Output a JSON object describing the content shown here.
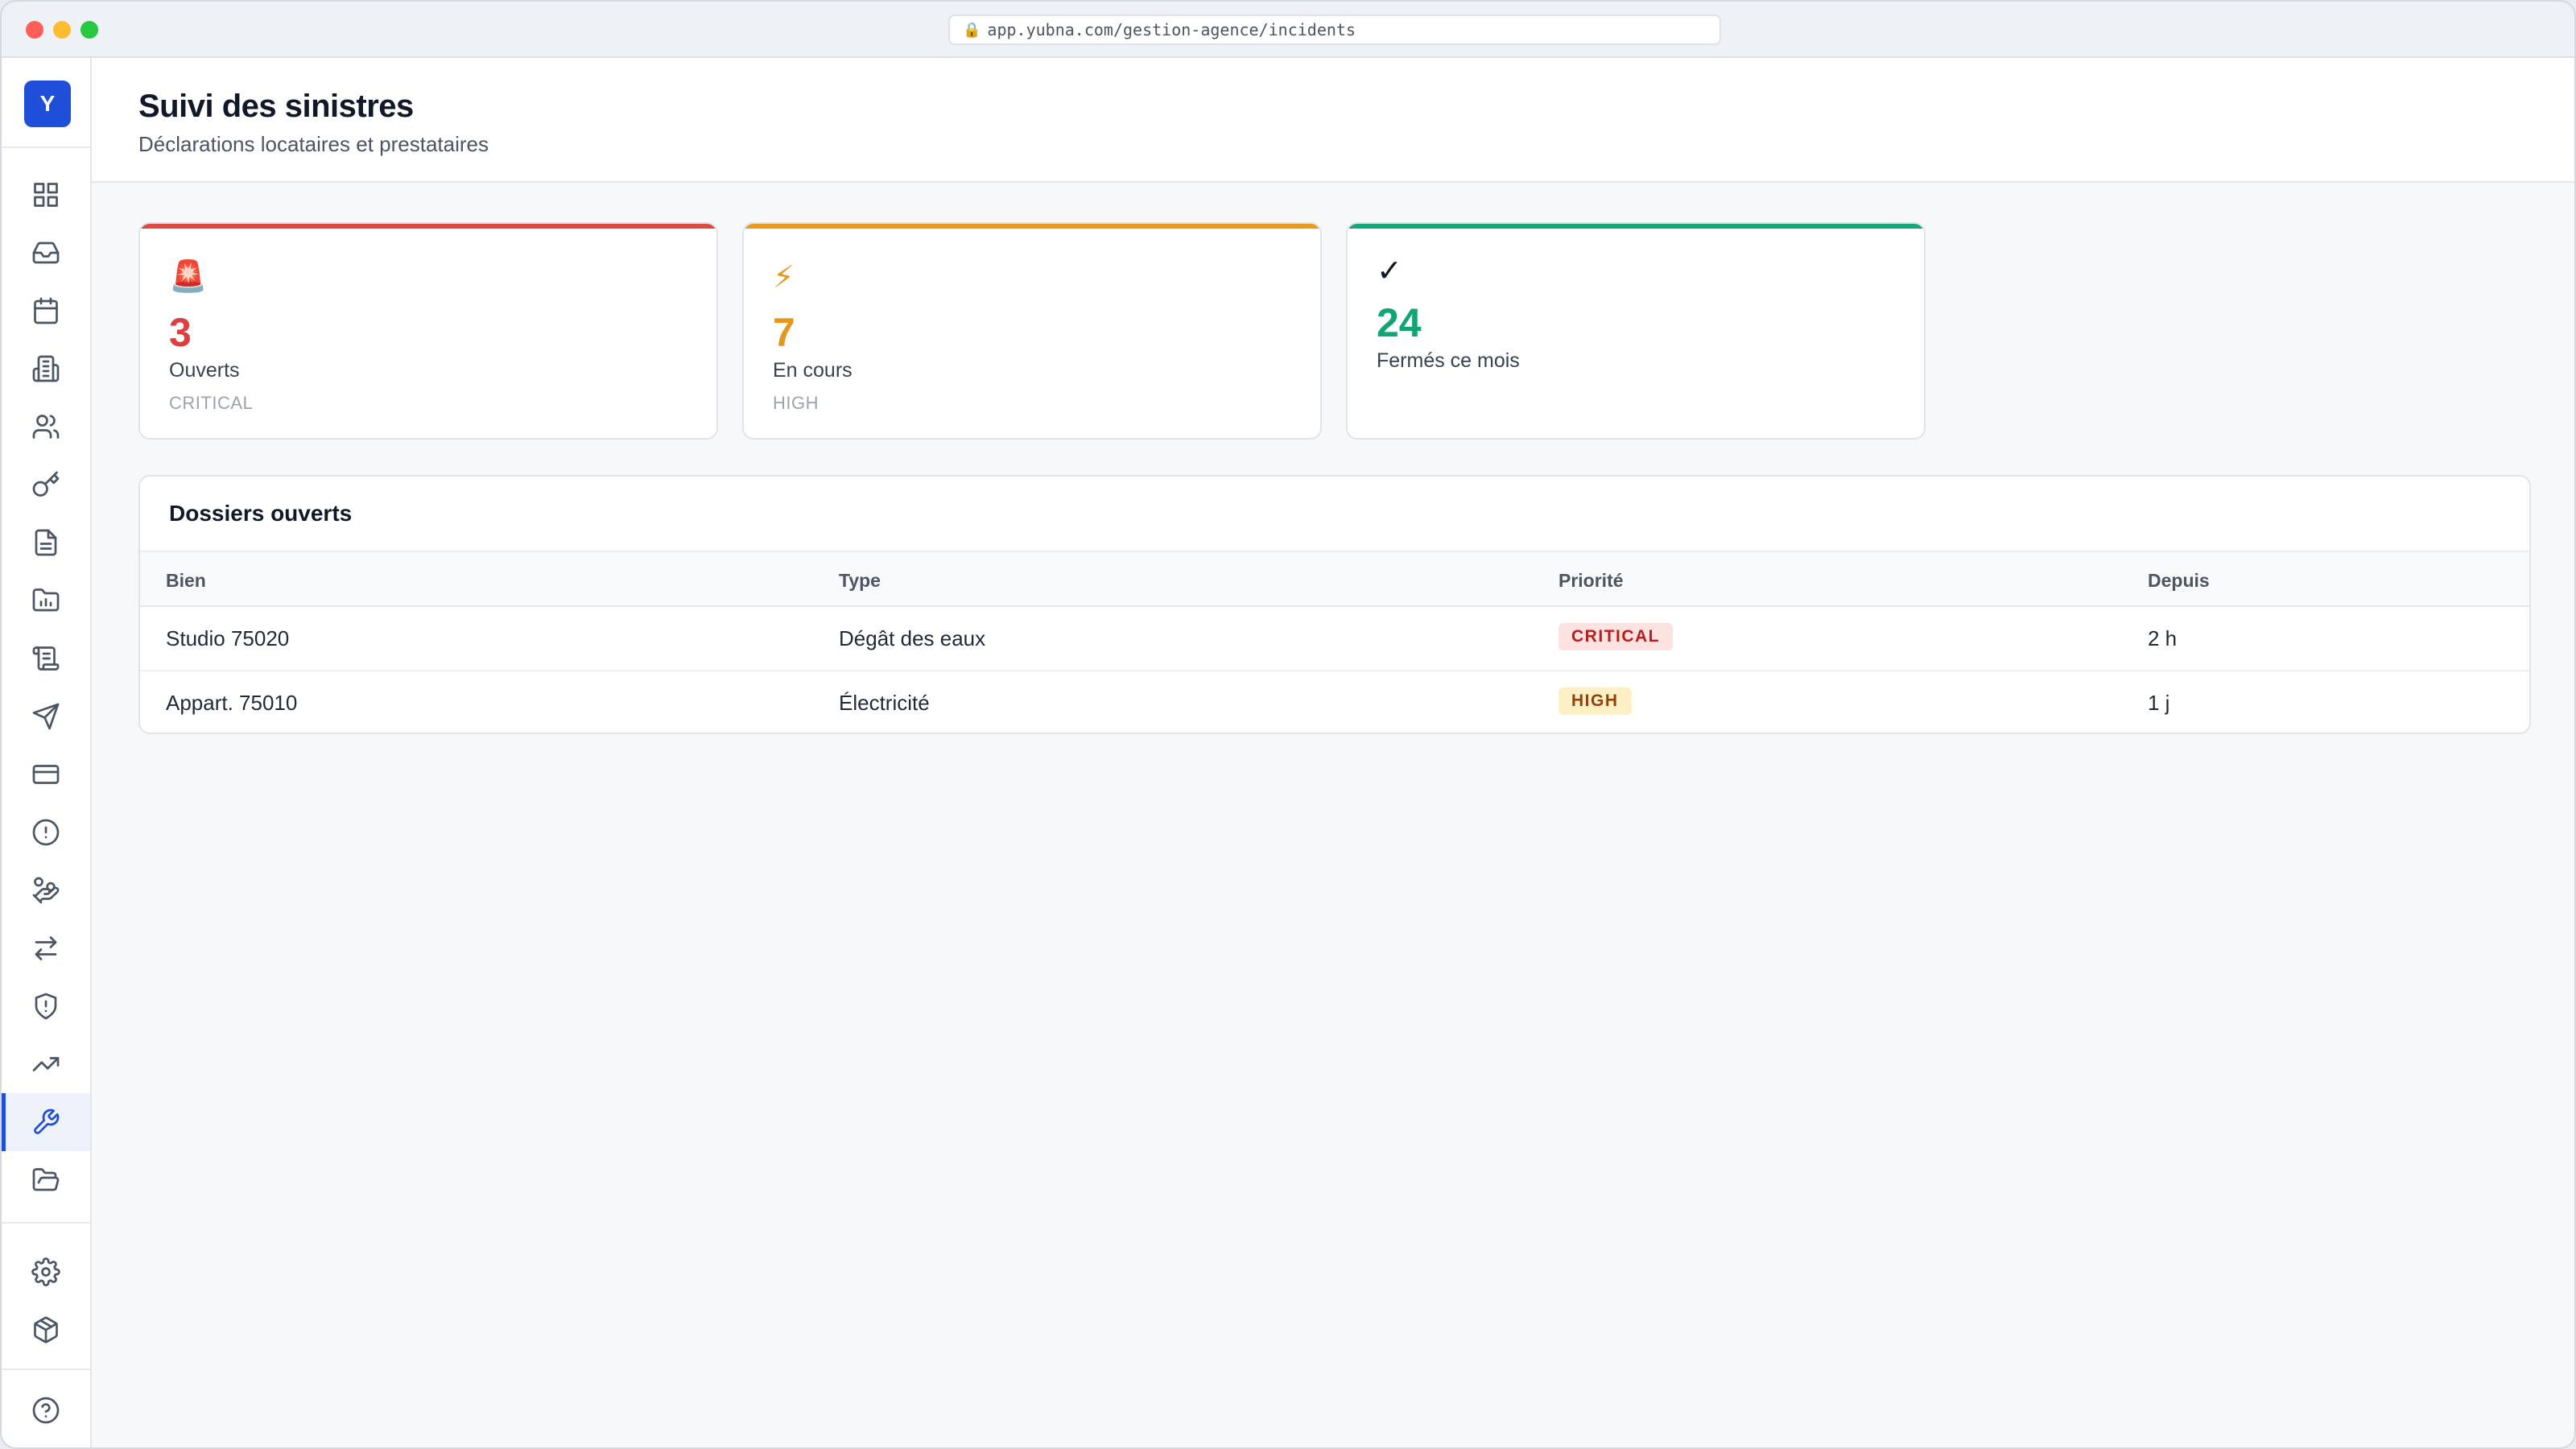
{
  "browser": {
    "url": "app.yubna.com/gestion-agence/incidents"
  },
  "sidebar": {
    "logo_letter": "Y",
    "items": [
      {
        "icon": "dashboard-icon"
      },
      {
        "icon": "inbox-icon"
      },
      {
        "icon": "calendar-icon"
      },
      {
        "icon": "building-icon"
      },
      {
        "icon": "users-icon"
      },
      {
        "icon": "key-icon"
      },
      {
        "icon": "document-icon"
      },
      {
        "icon": "folder-chart-icon"
      },
      {
        "icon": "scroll-icon"
      },
      {
        "icon": "send-icon"
      },
      {
        "icon": "credit-card-icon"
      },
      {
        "icon": "alert-circle-icon"
      },
      {
        "icon": "hand-coins-icon"
      },
      {
        "icon": "transfer-icon"
      },
      {
        "icon": "shield-alert-icon"
      },
      {
        "icon": "trending-up-icon"
      },
      {
        "icon": "wrench-icon",
        "active": true
      },
      {
        "icon": "folder-open-icon"
      }
    ],
    "bottom_items": [
      {
        "icon": "settings-icon"
      },
      {
        "icon": "package-icon"
      },
      {
        "icon": "help-icon"
      }
    ]
  },
  "header": {
    "title": "Suivi des sinistres",
    "subtitle": "Déclarations locataires et prestataires"
  },
  "stats": [
    {
      "icon": "🚨",
      "value": "3",
      "label": "Ouverts",
      "sub": "CRITICAL",
      "color": "#dc3f3f"
    },
    {
      "icon": "⚡",
      "value": "7",
      "label": "En cours",
      "sub": "HIGH",
      "color": "#e7951b"
    },
    {
      "icon": "✓",
      "value": "24",
      "label": "Fermés ce mois",
      "sub": "",
      "color": "#12a473"
    }
  ],
  "table": {
    "title": "Dossiers ouverts",
    "columns": [
      "Bien",
      "Type",
      "Priorité",
      "Depuis"
    ],
    "rows": [
      {
        "bien": "Studio 75020",
        "type": "Dégât des eaux",
        "priorite": "CRITICAL",
        "depuis": "2 h"
      },
      {
        "bien": "Appart. 75010",
        "type": "Électricité",
        "priorite": "HIGH",
        "depuis": "1 j"
      }
    ]
  },
  "colors": {
    "accent": "#1f4fd8",
    "critical_bg": "#fde2e2",
    "critical_text": "#b91c1c",
    "high_bg": "#fdf0c4",
    "high_text": "#92400e"
  }
}
